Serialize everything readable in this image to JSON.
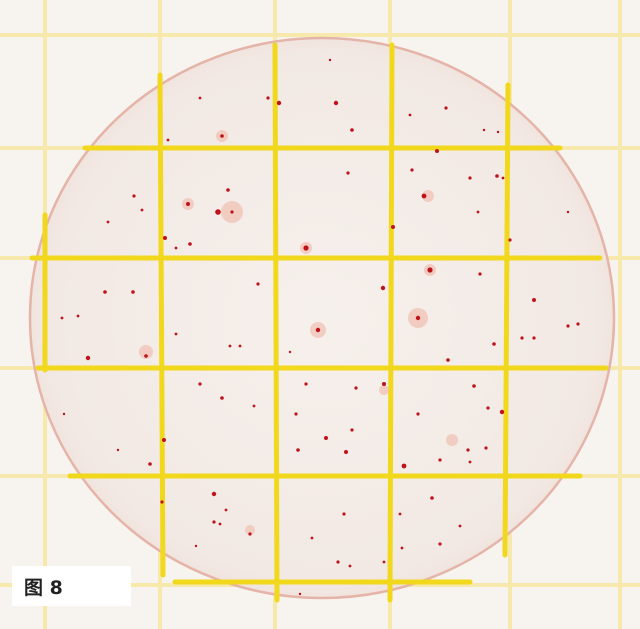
{
  "figure": {
    "label": "图 8"
  },
  "colors": {
    "paper": "#f7f3ee",
    "grid_yellow": "#f2dc27",
    "grid_faint": "#f6eaa0",
    "plate_fill": "#f3ebe6",
    "plate_rim": "#e7b7ac",
    "colony_red": "#c0121a",
    "colony_halo": "#f1c2b3"
  }
}
